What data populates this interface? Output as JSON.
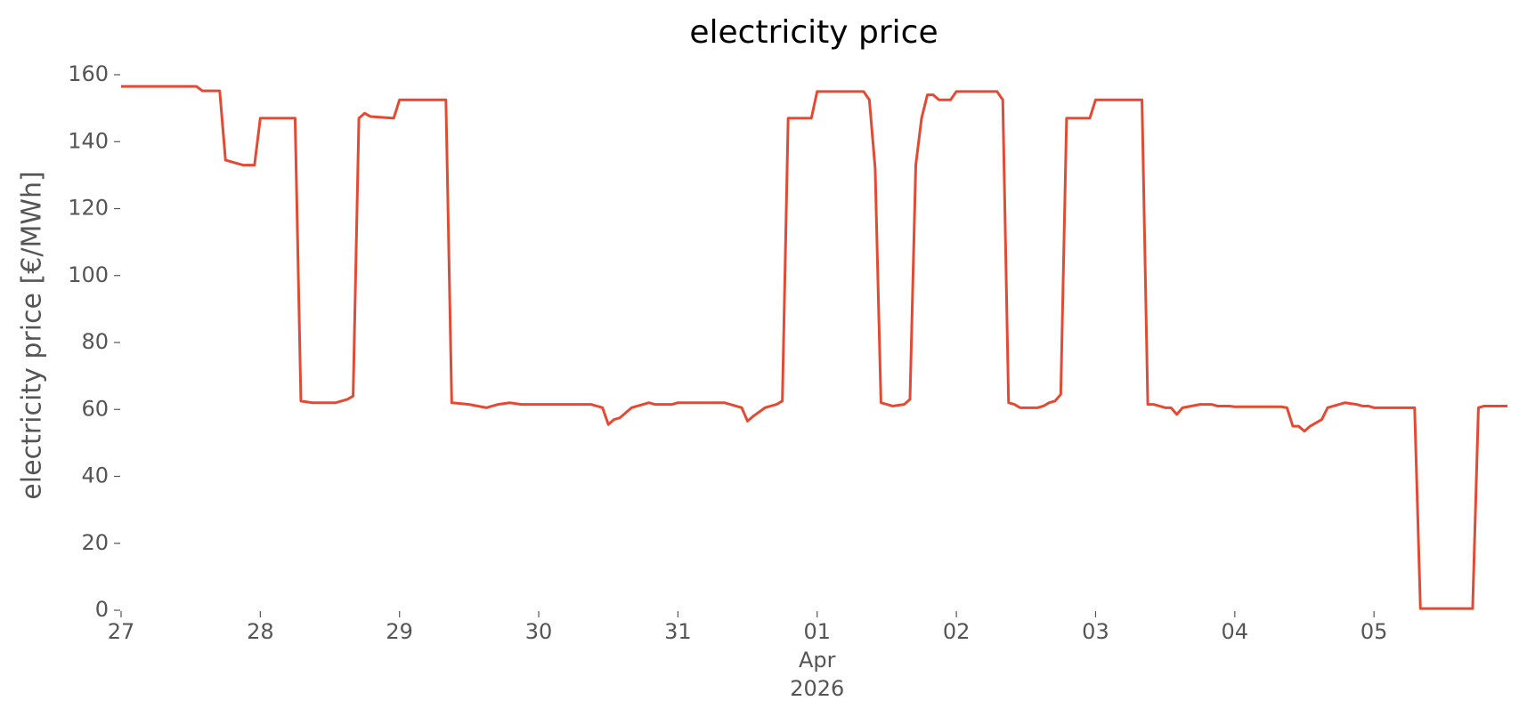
{
  "chart_data": {
    "type": "line",
    "title": "electricity price",
    "ylabel": "electricity price [€/MWh]",
    "color": "#e24a33",
    "x": [
      "2026-03-27T00:00",
      "2026-03-27T13:00",
      "2026-03-27T14:00",
      "2026-03-27T17:00",
      "2026-03-27T18:00",
      "2026-03-27T21:00",
      "2026-03-27T23:00",
      "2026-03-28T00:00",
      "2026-03-28T06:00",
      "2026-03-28T07:00",
      "2026-03-28T09:00",
      "2026-03-28T13:00",
      "2026-03-28T15:00",
      "2026-03-28T16:00",
      "2026-03-28T17:00",
      "2026-03-28T18:00",
      "2026-03-28T19:00",
      "2026-03-28T23:00",
      "2026-03-29T00:00",
      "2026-03-29T08:00",
      "2026-03-29T09:00",
      "2026-03-29T12:00",
      "2026-03-29T15:00",
      "2026-03-29T17:00",
      "2026-03-29T19:00",
      "2026-03-29T21:00",
      "2026-03-30T00:00",
      "2026-03-30T09:00",
      "2026-03-30T11:00",
      "2026-03-30T12:00",
      "2026-03-30T13:00",
      "2026-03-30T14:00",
      "2026-03-30T16:00",
      "2026-03-30T19:00",
      "2026-03-30T20:00",
      "2026-03-30T23:00",
      "2026-03-31T00:00",
      "2026-03-31T08:00",
      "2026-03-31T09:00",
      "2026-03-31T11:00",
      "2026-03-31T12:00",
      "2026-03-31T13:00",
      "2026-03-31T15:00",
      "2026-03-31T17:00",
      "2026-03-31T18:00",
      "2026-03-31T19:00",
      "2026-03-31T23:00",
      "2026-04-01T00:00",
      "2026-04-01T08:00",
      "2026-04-01T09:00",
      "2026-04-01T10:00",
      "2026-04-01T11:00",
      "2026-04-01T13:00",
      "2026-04-01T15:00",
      "2026-04-01T16:00",
      "2026-04-01T17:00",
      "2026-04-01T18:00",
      "2026-04-01T19:00",
      "2026-04-01T20:00",
      "2026-04-01T21:00",
      "2026-04-01T23:00",
      "2026-04-02T00:00",
      "2026-04-02T07:00",
      "2026-04-02T08:00",
      "2026-04-02T09:00",
      "2026-04-02T10:00",
      "2026-04-02T11:00",
      "2026-04-02T14:00",
      "2026-04-02T15:00",
      "2026-04-02T16:00",
      "2026-04-02T17:00",
      "2026-04-02T18:00",
      "2026-04-02T19:00",
      "2026-04-02T23:00",
      "2026-04-03T00:00",
      "2026-04-03T08:00",
      "2026-04-03T09:00",
      "2026-04-03T10:00",
      "2026-04-03T12:00",
      "2026-04-03T13:00",
      "2026-04-03T14:00",
      "2026-04-03T15:00",
      "2026-04-03T18:00",
      "2026-04-03T20:00",
      "2026-04-03T21:00",
      "2026-04-03T23:00",
      "2026-04-04T00:00",
      "2026-04-04T08:00",
      "2026-04-04T09:00",
      "2026-04-04T10:00",
      "2026-04-04T11:00",
      "2026-04-04T12:00",
      "2026-04-04T13:00",
      "2026-04-04T15:00",
      "2026-04-04T16:00",
      "2026-04-04T19:00",
      "2026-04-04T21:00",
      "2026-04-04T22:00",
      "2026-04-04T23:00",
      "2026-04-05T00:00",
      "2026-04-05T07:00",
      "2026-04-05T08:00",
      "2026-04-05T17:00",
      "2026-04-05T18:00",
      "2026-04-05T19:00",
      "2026-04-05T23:00"
    ],
    "values": [
      156.5,
      156.5,
      155.2,
      155.2,
      134.5,
      133,
      133,
      147,
      147,
      62.5,
      62,
      62,
      63,
      64,
      147,
      148.5,
      147.5,
      147,
      152.5,
      152.5,
      62,
      61.5,
      60.5,
      61.5,
      62,
      61.5,
      61.5,
      61.5,
      60.5,
      55.5,
      57,
      57.5,
      60.5,
      62,
      61.5,
      61.5,
      62,
      62,
      61.5,
      60.5,
      56.5,
      58,
      60.5,
      61.5,
      62.5,
      147,
      147,
      155,
      155,
      152.5,
      132,
      62,
      61,
      61.5,
      63,
      133,
      147,
      154,
      154,
      152.5,
      152.5,
      155,
      155,
      152.5,
      62,
      61.5,
      60.5,
      60.5,
      61,
      62,
      62.5,
      64.5,
      147,
      147,
      152.5,
      152.5,
      61.5,
      61.5,
      60.5,
      60.5,
      58.5,
      60.5,
      61.5,
      61.5,
      61,
      61,
      60.8,
      60.8,
      60.5,
      55,
      55,
      53.5,
      55,
      57,
      60.5,
      62,
      61.5,
      61,
      61,
      60.5,
      60.5,
      0.5,
      0.5,
      60.5,
      61,
      61
    ],
    "xlim": [
      "2026-03-27T00:00",
      "2026-04-05T23:00"
    ],
    "xticks": [
      {
        "value": "2026-03-27T00:00",
        "label": "27"
      },
      {
        "value": "2026-03-28T00:00",
        "label": "28"
      },
      {
        "value": "2026-03-29T00:00",
        "label": "29"
      },
      {
        "value": "2026-03-30T00:00",
        "label": "30"
      },
      {
        "value": "2026-03-31T00:00",
        "label": "31"
      },
      {
        "value": "2026-04-01T00:00",
        "label": "01\nApr\n2026"
      },
      {
        "value": "2026-04-02T00:00",
        "label": "02"
      },
      {
        "value": "2026-04-03T00:00",
        "label": "03"
      },
      {
        "value": "2026-04-04T00:00",
        "label": "04"
      },
      {
        "value": "2026-04-05T00:00",
        "label": "05"
      }
    ],
    "ylim": [
      0,
      165
    ],
    "yticks": [
      0,
      20,
      40,
      60,
      80,
      100,
      120,
      140,
      160
    ],
    "grid": false
  }
}
